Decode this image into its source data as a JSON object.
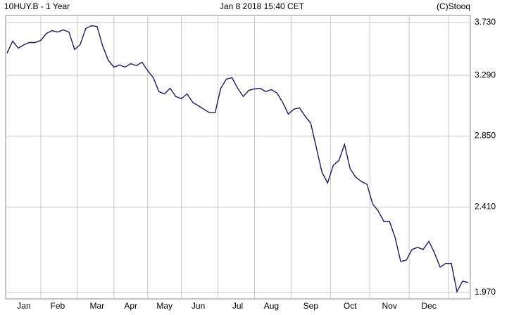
{
  "chart_data": {
    "type": "line",
    "title": "10HUY.B - 1 Year",
    "subtitle": "Jan 8 2018 15:40 CET",
    "source": "(C)Stooq",
    "categories": [
      null,
      null,
      null,
      "Jan",
      null,
      null,
      null,
      null,
      null,
      "Feb",
      null,
      null,
      null,
      null,
      null,
      null,
      "Mar",
      null,
      null,
      null,
      null,
      null,
      "Apr",
      null,
      null,
      null,
      null,
      null,
      "May",
      null,
      null,
      null,
      null,
      null,
      "Jun",
      null,
      null,
      null,
      null,
      null,
      null,
      "Jul",
      null,
      null,
      null,
      null,
      null,
      "Aug",
      null,
      null,
      null,
      null,
      null,
      null,
      "Sep",
      null,
      null,
      null,
      null,
      null,
      null,
      "Oct",
      null,
      null,
      null,
      null,
      null,
      null,
      "Nov",
      null,
      null,
      null,
      null,
      null,
      null,
      "Dec",
      null,
      null,
      null,
      null,
      null,
      null,
      null
    ],
    "series": [
      {
        "name": "10HUY.B",
        "color": "#1a1a6e",
        "values": [
          3.467,
          3.567,
          3.508,
          3.537,
          3.555,
          3.555,
          3.573,
          3.632,
          3.657,
          3.645,
          3.663,
          3.645,
          3.497,
          3.537,
          3.675,
          3.699,
          3.693,
          3.526,
          3.41,
          3.354,
          3.371,
          3.354,
          3.382,
          3.366,
          3.394,
          3.327,
          3.272,
          3.165,
          3.149,
          3.191,
          3.129,
          3.113,
          3.149,
          3.087,
          3.062,
          3.037,
          3.012,
          3.012,
          3.191,
          3.261,
          3.272,
          3.191,
          3.129,
          3.176,
          3.186,
          3.191,
          3.165,
          3.181,
          3.155,
          3.087,
          3.002,
          3.037,
          3.047,
          2.987,
          2.938,
          2.772,
          2.616,
          2.551,
          2.66,
          2.69,
          2.795,
          2.638,
          2.586,
          2.56,
          2.543,
          2.428,
          2.388,
          2.329,
          2.329,
          2.242,
          2.119,
          2.126,
          2.18,
          2.191,
          2.18,
          2.223,
          2.162,
          2.091,
          2.109,
          2.109,
          1.973,
          2.023,
          2.016
        ]
      }
    ],
    "ylim": [
      1.94,
      3.79
    ],
    "yticks": [
      {
        "value": 1.97,
        "label": "1.970"
      },
      {
        "value": 2.41,
        "label": "2.410"
      },
      {
        "value": 2.85,
        "label": "2.850"
      },
      {
        "value": 3.29,
        "label": "3.290"
      },
      {
        "value": 3.73,
        "label": "3.730"
      }
    ],
    "log_scale": true,
    "grid": true
  }
}
